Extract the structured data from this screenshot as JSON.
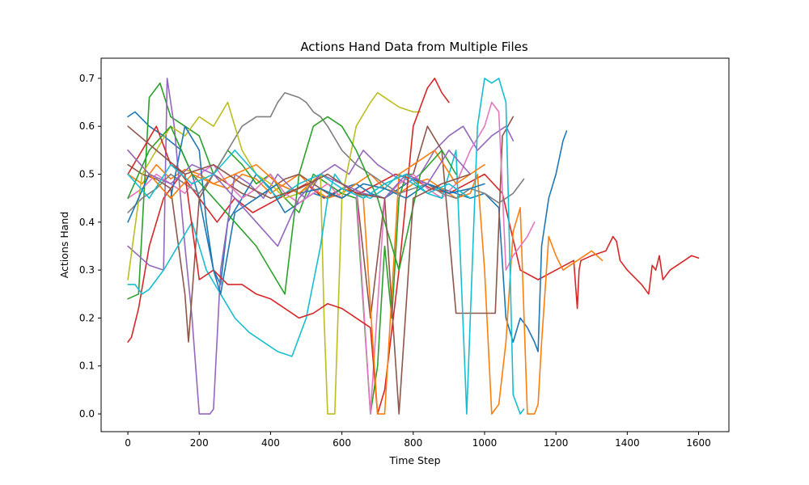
{
  "chart_data": {
    "type": "line",
    "title": "Actions Hand Data from Multiple Files",
    "xlabel": "Time Step",
    "ylabel": "Actions Hand",
    "xlim": [
      -75,
      1685
    ],
    "ylim": [
      -0.037,
      0.742
    ],
    "xticks": [
      0,
      200,
      400,
      600,
      800,
      1000,
      1200,
      1400,
      1600
    ],
    "xtick_labels": [
      "0",
      "200",
      "400",
      "600",
      "800",
      "1000",
      "1200",
      "1400",
      "1600"
    ],
    "yticks": [
      0.0,
      0.1,
      0.2,
      0.3,
      0.4,
      0.5,
      0.6,
      0.7
    ],
    "ytick_labels": [
      "0.0",
      "0.1",
      "0.2",
      "0.3",
      "0.4",
      "0.5",
      "0.6",
      "0.7"
    ],
    "grid": false,
    "legend": "none",
    "colors": [
      "#1f77b4",
      "#ff7f0e",
      "#2ca02c",
      "#d62728",
      "#9467bd",
      "#8c564b",
      "#e377c2",
      "#7f7f7f",
      "#bcbd22",
      "#17becf"
    ],
    "series": [
      {
        "color": "#d62728",
        "x": [
          0,
          10,
          30,
          60,
          100,
          150,
          200,
          250,
          300,
          350,
          400,
          450,
          500,
          550,
          600,
          650,
          700,
          750,
          800,
          850,
          900,
          950,
          1000,
          1050,
          1100,
          1150,
          1200,
          1250,
          1260,
          1265,
          1270,
          1300,
          1340,
          1360,
          1370,
          1380,
          1400,
          1440,
          1460,
          1470,
          1480,
          1490,
          1500,
          1520,
          1540,
          1560,
          1580,
          1600
        ],
        "y": [
          0.15,
          0.16,
          0.22,
          0.35,
          0.45,
          0.5,
          0.45,
          0.4,
          0.45,
          0.42,
          0.44,
          0.46,
          0.48,
          0.45,
          0.47,
          0.46,
          0.48,
          0.5,
          0.49,
          0.47,
          0.46,
          0.48,
          0.5,
          0.46,
          0.3,
          0.28,
          0.3,
          0.32,
          0.22,
          0.3,
          0.32,
          0.33,
          0.34,
          0.37,
          0.36,
          0.32,
          0.3,
          0.27,
          0.25,
          0.31,
          0.3,
          0.33,
          0.28,
          0.3,
          0.31,
          0.32,
          0.33,
          0.325
        ]
      },
      {
        "color": "#1f77b4",
        "x": [
          0,
          20,
          60,
          100,
          150,
          180,
          200,
          240,
          260,
          280,
          320,
          360,
          400,
          440,
          480,
          520,
          560,
          600,
          640,
          680,
          720,
          760,
          800,
          840,
          880,
          920,
          960,
          1000,
          1040,
          1060,
          1080,
          1100,
          1120,
          1140,
          1150,
          1160,
          1180,
          1200,
          1220,
          1230
        ],
        "y": [
          0.62,
          0.63,
          0.6,
          0.58,
          0.55,
          0.5,
          0.45,
          0.3,
          0.27,
          0.4,
          0.45,
          0.5,
          0.47,
          0.42,
          0.44,
          0.46,
          0.45,
          0.47,
          0.48,
          0.46,
          0.45,
          0.47,
          0.49,
          0.48,
          0.47,
          0.46,
          0.45,
          0.46,
          0.43,
          0.2,
          0.15,
          0.2,
          0.18,
          0.15,
          0.13,
          0.35,
          0.45,
          0.5,
          0.57,
          0.59
        ]
      },
      {
        "color": "#ff7f0e",
        "x": [
          0,
          40,
          80,
          120,
          160,
          200,
          240,
          280,
          320,
          360,
          400,
          440,
          480,
          520,
          560,
          600,
          640,
          680,
          720,
          760,
          800,
          840,
          880,
          920,
          960,
          980,
          1000,
          1020,
          1040,
          1060,
          1080,
          1100,
          1120,
          1140,
          1150,
          1160,
          1180,
          1200,
          1220,
          1260,
          1300,
          1330
        ],
        "y": [
          0.5,
          0.48,
          0.52,
          0.49,
          0.51,
          0.5,
          0.48,
          0.47,
          0.5,
          0.49,
          0.46,
          0.48,
          0.5,
          0.47,
          0.45,
          0.46,
          0.48,
          0.5,
          0.47,
          0.46,
          0.48,
          0.49,
          0.47,
          0.45,
          0.46,
          0.5,
          0.3,
          0.0,
          0.02,
          0.15,
          0.38,
          0.43,
          0.0,
          0.0,
          0.02,
          0.15,
          0.37,
          0.33,
          0.3,
          0.32,
          0.34,
          0.32
        ]
      },
      {
        "color": "#2ca02c",
        "x": [
          0,
          30,
          60,
          90,
          120,
          160,
          200,
          240,
          280,
          320,
          360,
          400,
          440,
          480,
          520,
          560,
          600,
          640,
          680,
          700,
          720,
          740,
          760,
          780,
          800
        ],
        "y": [
          0.24,
          0.25,
          0.66,
          0.69,
          0.62,
          0.6,
          0.58,
          0.5,
          0.55,
          0.52,
          0.48,
          0.5,
          0.45,
          0.42,
          0.5,
          0.48,
          0.46,
          0.45,
          0.0,
          0.1,
          0.35,
          0.2,
          0.45,
          0.5,
          0.5
        ]
      },
      {
        "color": "#9467bd",
        "x": [
          0,
          30,
          60,
          100,
          110,
          130,
          160,
          180,
          190,
          200,
          220,
          230,
          240,
          260,
          300,
          340,
          380,
          420,
          460,
          500,
          540,
          580,
          620,
          660,
          700,
          740,
          780,
          820,
          860,
          900,
          940,
          980,
          1020,
          1060,
          1080
        ],
        "y": [
          0.35,
          0.33,
          0.31,
          0.3,
          0.7,
          0.6,
          0.35,
          0.2,
          0.1,
          0.0,
          0.0,
          0.0,
          0.01,
          0.3,
          0.5,
          0.48,
          0.45,
          0.5,
          0.47,
          0.45,
          0.5,
          0.52,
          0.5,
          0.55,
          0.52,
          0.5,
          0.48,
          0.5,
          0.55,
          0.58,
          0.6,
          0.55,
          0.58,
          0.6,
          0.57
        ]
      },
      {
        "color": "#8c564b",
        "x": [
          0,
          40,
          80,
          120,
          160,
          170,
          200,
          240,
          280,
          320,
          360,
          400,
          440,
          480,
          520,
          560,
          600,
          640,
          680,
          720,
          760,
          800,
          840,
          880,
          920,
          940,
          960,
          1000,
          1030,
          1050,
          1080
        ],
        "y": [
          0.52,
          0.5,
          0.49,
          0.47,
          0.25,
          0.15,
          0.45,
          0.5,
          0.48,
          0.46,
          0.45,
          0.47,
          0.49,
          0.5,
          0.48,
          0.46,
          0.45,
          0.47,
          0.2,
          0.45,
          0.48,
          0.5,
          0.6,
          0.55,
          0.21,
          0.21,
          0.21,
          0.21,
          0.21,
          0.58,
          0.62
        ]
      },
      {
        "color": "#e377c2",
        "x": [
          0,
          40,
          80,
          120,
          160,
          200,
          240,
          280,
          320,
          360,
          400,
          440,
          480,
          520,
          560,
          600,
          640,
          680,
          720,
          760,
          800,
          840,
          880,
          920,
          960,
          1000,
          1020,
          1040,
          1060,
          1080,
          1100,
          1120,
          1140
        ],
        "y": [
          0.45,
          0.47,
          0.5,
          0.48,
          0.46,
          0.5,
          0.52,
          0.48,
          0.45,
          0.47,
          0.5,
          0.46,
          0.44,
          0.46,
          0.48,
          0.45,
          0.47,
          0.0,
          0.45,
          0.48,
          0.5,
          0.47,
          0.45,
          0.48,
          0.55,
          0.6,
          0.65,
          0.63,
          0.3,
          0.33,
          0.35,
          0.37,
          0.4
        ]
      },
      {
        "color": "#7f7f7f",
        "x": [
          0,
          40,
          80,
          120,
          160,
          200,
          240,
          280,
          320,
          360,
          400,
          420,
          440,
          480,
          500,
          520,
          540,
          560,
          600,
          640,
          680,
          720,
          760,
          800,
          840,
          880,
          920,
          960,
          1000,
          1040,
          1060,
          1080,
          1110
        ],
        "y": [
          0.42,
          0.45,
          0.47,
          0.5,
          0.48,
          0.46,
          0.5,
          0.55,
          0.6,
          0.62,
          0.62,
          0.65,
          0.67,
          0.66,
          0.65,
          0.63,
          0.62,
          0.6,
          0.55,
          0.52,
          0.5,
          0.48,
          0.46,
          0.47,
          0.48,
          0.46,
          0.45,
          0.47,
          0.46,
          0.44,
          0.45,
          0.46,
          0.49
        ]
      },
      {
        "color": "#bcbd22",
        "x": [
          0,
          40,
          80,
          120,
          160,
          200,
          240,
          280,
          320,
          360,
          400,
          440,
          480,
          520,
          540,
          550,
          560,
          570,
          580,
          600,
          640,
          680,
          700,
          720,
          760,
          800,
          820
        ],
        "y": [
          0.28,
          0.5,
          0.55,
          0.6,
          0.58,
          0.62,
          0.6,
          0.65,
          0.55,
          0.5,
          0.48,
          0.45,
          0.46,
          0.48,
          0.5,
          0.2,
          0.0,
          0.0,
          0.0,
          0.45,
          0.6,
          0.65,
          0.67,
          0.66,
          0.64,
          0.63,
          0.63
        ]
      },
      {
        "color": "#17becf",
        "x": [
          0,
          20,
          40,
          60,
          100,
          140,
          180,
          220,
          260,
          300,
          340,
          380,
          420,
          460,
          500,
          540,
          560,
          580,
          600,
          640,
          680,
          720,
          760,
          800,
          840,
          880,
          920,
          950,
          980,
          1000,
          1020,
          1040,
          1060,
          1080,
          1100,
          1110
        ],
        "y": [
          0.27,
          0.27,
          0.25,
          0.26,
          0.3,
          0.35,
          0.4,
          0.3,
          0.25,
          0.2,
          0.17,
          0.15,
          0.13,
          0.12,
          0.2,
          0.35,
          0.45,
          0.5,
          0.48,
          0.46,
          0.45,
          0.47,
          0.5,
          0.48,
          0.46,
          0.45,
          0.55,
          0.0,
          0.6,
          0.7,
          0.69,
          0.7,
          0.65,
          0.04,
          0.0,
          0.01
        ]
      },
      {
        "color": "#d62728",
        "x": [
          0,
          40,
          80,
          120,
          160,
          200,
          240,
          280,
          320,
          360,
          400,
          440,
          480,
          520,
          560,
          600,
          640,
          680,
          700,
          720,
          760,
          800,
          840,
          860,
          880,
          900
        ],
        "y": [
          0.5,
          0.55,
          0.6,
          0.52,
          0.5,
          0.28,
          0.3,
          0.27,
          0.27,
          0.25,
          0.24,
          0.22,
          0.2,
          0.21,
          0.23,
          0.22,
          0.2,
          0.18,
          0.0,
          0.05,
          0.3,
          0.6,
          0.68,
          0.7,
          0.67,
          0.65
        ]
      },
      {
        "color": "#1f77b4",
        "x": [
          0,
          60,
          120,
          160,
          200,
          220,
          240,
          260,
          300,
          360,
          420,
          480,
          540,
          600,
          660,
          720,
          780,
          840,
          900,
          960,
          1000
        ],
        "y": [
          0.4,
          0.5,
          0.45,
          0.6,
          0.55,
          0.4,
          0.3,
          0.25,
          0.42,
          0.45,
          0.48,
          0.46,
          0.47,
          0.45,
          0.48,
          0.47,
          0.45,
          0.48,
          0.46,
          0.47,
          0.48
        ]
      },
      {
        "color": "#ff7f0e",
        "x": [
          0,
          60,
          120,
          180,
          240,
          300,
          360,
          420,
          480,
          540,
          600,
          660,
          700,
          720,
          760,
          800,
          860,
          920,
          960,
          1000
        ],
        "y": [
          0.55,
          0.5,
          0.45,
          0.5,
          0.48,
          0.5,
          0.52,
          0.48,
          0.46,
          0.5,
          0.48,
          0.45,
          0.0,
          0.0,
          0.5,
          0.52,
          0.55,
          0.48,
          0.5,
          0.52
        ]
      },
      {
        "color": "#2ca02c",
        "x": [
          0,
          60,
          120,
          180,
          240,
          300,
          360,
          400,
          440,
          480,
          520,
          560,
          600,
          640,
          700,
          760,
          820,
          880,
          920
        ],
        "y": [
          0.45,
          0.55,
          0.6,
          0.5,
          0.45,
          0.4,
          0.35,
          0.3,
          0.25,
          0.5,
          0.6,
          0.62,
          0.6,
          0.55,
          0.45,
          0.3,
          0.5,
          0.55,
          0.5
        ]
      },
      {
        "color": "#9467bd",
        "x": [
          0,
          60,
          120,
          180,
          240,
          300,
          360,
          420,
          480,
          540,
          600,
          660,
          720,
          780,
          840,
          900,
          960
        ],
        "y": [
          0.55,
          0.5,
          0.48,
          0.52,
          0.5,
          0.45,
          0.4,
          0.35,
          0.45,
          0.5,
          0.48,
          0.46,
          0.45,
          0.5,
          0.48,
          0.55,
          0.5
        ]
      },
      {
        "color": "#17becf",
        "x": [
          0,
          60,
          120,
          180,
          240,
          300,
          360,
          420,
          480,
          540,
          600,
          660,
          720,
          780,
          840,
          900,
          960
        ],
        "y": [
          0.5,
          0.45,
          0.52,
          0.48,
          0.5,
          0.55,
          0.5,
          0.45,
          0.48,
          0.5,
          0.47,
          0.45,
          0.48,
          0.5,
          0.46,
          0.48,
          0.45
        ]
      },
      {
        "color": "#8c564b",
        "x": [
          0,
          80,
          160,
          240,
          320,
          400,
          480,
          560,
          640,
          720,
          760,
          800,
          880,
          960
        ],
        "y": [
          0.6,
          0.55,
          0.5,
          0.52,
          0.48,
          0.45,
          0.47,
          0.5,
          0.46,
          0.45,
          0.0,
          0.45,
          0.48,
          0.5
        ]
      }
    ]
  }
}
